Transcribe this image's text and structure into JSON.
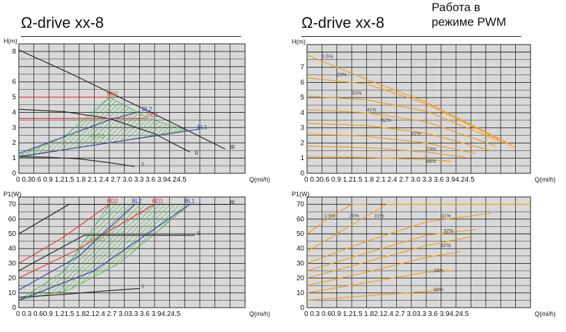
{
  "titles": {
    "left": "Ω-drive xx-8",
    "right": "Ω-drive xx-8",
    "right_note_line1": "Работа в",
    "right_note_line2": "режиме PWM"
  },
  "colors": {
    "grid_bg": "#d9d9d9",
    "grid_line": "#222222",
    "speed_curve": "#1a1a1a",
    "hd_red": "#e0302a",
    "bl_blue": "#2b3a9c",
    "auto_green": "#4caf50",
    "pwm_orange": "#f0a020"
  },
  "chart_data": [
    {
      "id": "left-top",
      "type": "line",
      "ylabel": "H(m)",
      "xlabel": "Q(mi/h)",
      "xlim": [
        0,
        4.5
      ],
      "ylim": [
        0,
        8.5
      ],
      "xticks": [
        "0",
        "0.3",
        "0.6",
        "0.9",
        "1.2",
        "1.5",
        "1.8",
        "2.1",
        "2.4",
        "2.7",
        "3.0",
        "3.3",
        "3.6",
        "3.9",
        "4.2",
        "4.5"
      ],
      "xtick_text": "0 0.30.6 0.9 1.21.5 1.8 2.1 2.4 2.7 3.0 3.3 3.6 3.94.24.5",
      "yticks": [
        "0",
        "1",
        "2",
        "3",
        "4",
        "5",
        "6",
        "8"
      ],
      "series": [
        {
          "name": "I",
          "color": "#1a1a1a",
          "points": [
            [
              0,
              1.1
            ],
            [
              0.6,
              1.05
            ],
            [
              1.2,
              0.95
            ],
            [
              1.8,
              0.7
            ],
            [
              2.3,
              0.45
            ]
          ]
        },
        {
          "name": "II",
          "color": "#1a1a1a",
          "points": [
            [
              0,
              4.2
            ],
            [
              0.9,
              4.05
            ],
            [
              1.8,
              3.6
            ],
            [
              2.7,
              2.6
            ],
            [
              3.4,
              1.4
            ]
          ]
        },
        {
          "name": "III",
          "color": "#1a1a1a",
          "points": [
            [
              0,
              8.1
            ],
            [
              1.0,
              6.6
            ],
            [
              2.0,
              5.0
            ],
            [
              3.0,
              3.4
            ],
            [
              4.1,
              1.6
            ]
          ]
        },
        {
          "name": "HD2",
          "color": "#e0302a",
          "points": [
            [
              0,
              5.0
            ],
            [
              1.85,
              5.0
            ]
          ]
        },
        {
          "name": "HD1",
          "color": "#e0302a",
          "points": [
            [
              0,
              3.6
            ],
            [
              2.55,
              3.6
            ]
          ]
        },
        {
          "name": "BL2",
          "color": "#2b3a9c",
          "points": [
            [
              0,
              1.3
            ],
            [
              0.9,
              2.4
            ],
            [
              1.8,
              3.5
            ],
            [
              2.4,
              4.05
            ]
          ]
        },
        {
          "name": "BL1",
          "color": "#2b3a9c",
          "points": [
            [
              0,
              1.1
            ],
            [
              1.0,
              1.6
            ],
            [
              2.0,
              2.1
            ],
            [
              3.0,
              2.6
            ],
            [
              3.6,
              2.9
            ]
          ]
        },
        {
          "name": "AUTO",
          "color": "#4caf50",
          "points": []
        }
      ]
    },
    {
      "id": "left-bottom",
      "type": "line",
      "ylabel": "P1(W)",
      "xlabel": "Q(mi/h)",
      "xlim": [
        0,
        4.5
      ],
      "ylim": [
        0,
        75
      ],
      "xticks": [
        "0",
        "0.3",
        "0.6",
        "0.9",
        "1.2",
        "1.5",
        "1.8",
        "2.1",
        "2.4",
        "2.7",
        "3.0",
        "3.3",
        "3.6",
        "3.9",
        "4.2",
        "4.5"
      ],
      "xtick_text": "0 0.3 0.60.9 1.21.5 1.82.12.4 2.7 3.03.3 3.6 3.94.24.5",
      "yticks": [
        "0",
        "10",
        "20",
        "30",
        "40",
        "50",
        "60",
        "70"
      ],
      "series": [
        {
          "name": "I",
          "color": "#1a1a1a",
          "points": [
            [
              0,
              7
            ],
            [
              0.9,
              9
            ],
            [
              1.8,
              11.5
            ],
            [
              2.4,
              13
            ]
          ]
        },
        {
          "name": "II",
          "color": "#1a1a1a",
          "points": [
            [
              0,
              25
            ],
            [
              0.7,
              38
            ],
            [
              1.3,
              49
            ],
            [
              3.5,
              49
            ]
          ]
        },
        {
          "name": "III",
          "color": "#1a1a1a",
          "points": [
            [
              0,
              50
            ],
            [
              0.6,
              62
            ],
            [
              1.0,
              70
            ],
            [
              4.2,
              70
            ]
          ]
        },
        {
          "name": "HD2",
          "color": "#e0302a",
          "points": [
            [
              0,
              30
            ],
            [
              0.9,
              48
            ],
            [
              1.8,
              70
            ]
          ]
        },
        {
          "name": "HD1",
          "color": "#e0302a",
          "points": [
            [
              0,
              20
            ],
            [
              1.2,
              40
            ],
            [
              2.7,
              70
            ]
          ]
        },
        {
          "name": "BL2",
          "color": "#2b3a9c",
          "points": [
            [
              0,
              12
            ],
            [
              1.2,
              35
            ],
            [
              2.3,
              70
            ]
          ]
        },
        {
          "name": "BL1",
          "color": "#2b3a9c",
          "points": [
            [
              0,
              5
            ],
            [
              1.5,
              25
            ],
            [
              3.4,
              70
            ]
          ]
        },
        {
          "name": "AUTO",
          "color": "#4caf50",
          "points": []
        }
      ]
    },
    {
      "id": "right-top",
      "type": "line",
      "ylabel": "H(m)",
      "xlabel": "Q(mi/h)",
      "xlim": [
        0,
        4.5
      ],
      "ylim": [
        0,
        8.5
      ],
      "xticks": [
        "0",
        "0.3",
        "0.6",
        "0.9",
        "1.2",
        "1.5",
        "1.8",
        "2.1",
        "2.4",
        "2.7",
        "3.0",
        "3.3",
        "3.6",
        "3.9",
        "4.2",
        "4.5"
      ],
      "xtick_text": "0 0.30.6 0.9 1.21.5 1.8 2.1 2.4 2.7 3.0 3.3 3.6 3.94.24.5",
      "yticks": [
        "0",
        "1",
        "2",
        "3",
        "4",
        "5",
        "6",
        "7"
      ],
      "series": [
        {
          "name": "0.5%",
          "color": "#f0a020",
          "points": [
            [
              0,
              1.1
            ],
            [
              1.2,
              1.05
            ],
            [
              2.4,
              0.9
            ],
            [
              2.9,
              0.8
            ]
          ]
        },
        {
          "name": "20%",
          "color": "#f0a020",
          "points": [
            [
              0,
              1.8
            ],
            [
              1.2,
              1.7
            ],
            [
              2.4,
              1.4
            ],
            [
              3.2,
              1.05
            ]
          ]
        },
        {
          "name": "31%",
          "color": "#f0a020",
          "points": [
            [
              0,
              2.6
            ],
            [
              1.2,
              2.45
            ],
            [
              2.4,
              2.0
            ],
            [
              3.4,
              1.3
            ]
          ]
        },
        {
          "name": "41%",
          "color": "#f0a020",
          "points": [
            [
              0,
              3.3
            ],
            [
              1.2,
              3.15
            ],
            [
              2.4,
              2.65
            ],
            [
              3.7,
              1.5
            ]
          ]
        },
        {
          "name": "52%",
          "color": "#f0a020",
          "points": [
            [
              0,
              4.2
            ],
            [
              1.2,
              4.0
            ],
            [
              2.4,
              3.4
            ],
            [
              3.8,
              1.8
            ]
          ]
        },
        {
          "name": "62%",
          "color": "#f0a020",
          "points": [
            [
              0,
              5.1
            ],
            [
              1.2,
              4.85
            ],
            [
              2.4,
              4.1
            ],
            [
              3.9,
              2.1
            ]
          ]
        },
        {
          "name": "73%",
          "color": "#f0a020",
          "points": [
            [
              0,
              6.3
            ],
            [
              1.2,
              5.9
            ],
            [
              2.4,
              4.6
            ],
            [
              4.2,
              1.7
            ]
          ]
        },
        {
          "name": "88%",
          "color": "#f0a020",
          "points": [
            [
              0,
              7.8
            ],
            [
              1.2,
              6.2
            ],
            [
              2.4,
              4.7
            ],
            [
              4.1,
              1.9
            ]
          ]
        }
      ]
    },
    {
      "id": "right-bottom",
      "type": "line",
      "ylabel": "P1(W)",
      "xlabel": "Q(mi/h)",
      "xlim": [
        0,
        4.5
      ],
      "ylim": [
        0,
        75
      ],
      "xticks": [
        "0",
        "0.3",
        "0.6",
        "0.9",
        "1.2",
        "1.5",
        "1.8",
        "2.1",
        "2.4",
        "2.7",
        "3.0",
        "3.3",
        "3.6",
        "3.9",
        "4.2",
        "4.5"
      ],
      "xtick_text": "0 0.3 0.60.9 1.21.5 1.82.12.4 2.7 3.03.3 3.6 3.94.24.5",
      "yticks": [
        "0",
        "10",
        "20",
        "30",
        "40",
        "50",
        "60",
        "70"
      ],
      "series": [
        {
          "name": "0.5%",
          "color": "#f0a020",
          "points": [
            [
              0,
              5
            ],
            [
              1.2,
              8
            ],
            [
              2.4,
              11
            ],
            [
              2.7,
              12
            ]
          ]
        },
        {
          "name": "20%",
          "color": "#f0a020",
          "points": [
            [
              0,
              10
            ],
            [
              1.2,
              17
            ],
            [
              2.4,
              24
            ],
            [
              2.9,
              25
            ]
          ]
        },
        {
          "name": "31%",
          "color": "#f0a020",
          "points": [
            [
              0,
              15
            ],
            [
              1.2,
              24
            ],
            [
              2.4,
              34
            ],
            [
              3.1,
              38
            ]
          ]
        },
        {
          "name": "41%",
          "color": "#f0a020",
          "points": [
            [
              0,
              20
            ],
            [
              1.2,
              31
            ],
            [
              2.4,
              42
            ],
            [
              3.3,
              48
            ]
          ]
        },
        {
          "name": "52%",
          "color": "#f0a020",
          "points": [
            [
              0,
              25
            ],
            [
              1.2,
              37
            ],
            [
              2.4,
              49
            ],
            [
              3.4,
              53
            ]
          ]
        },
        {
          "name": "62%",
          "color": "#f0a020",
          "points": [
            [
              0,
              30
            ],
            [
              1.2,
              45
            ],
            [
              2.4,
              58
            ],
            [
              3.7,
              64
            ]
          ]
        },
        {
          "name": "73%",
          "color": "#f0a020",
          "points": [
            [
              0,
              38
            ],
            [
              1.0,
              58
            ],
            [
              1.6,
              70
            ],
            [
              4.5,
              70
            ]
          ]
        },
        {
          "name": "88%",
          "color": "#f0a020",
          "points": [
            [
              0,
              50
            ],
            [
              0.5,
              62
            ],
            [
              0.9,
              70
            ],
            [
              1.2,
              70
            ]
          ]
        }
      ]
    }
  ]
}
